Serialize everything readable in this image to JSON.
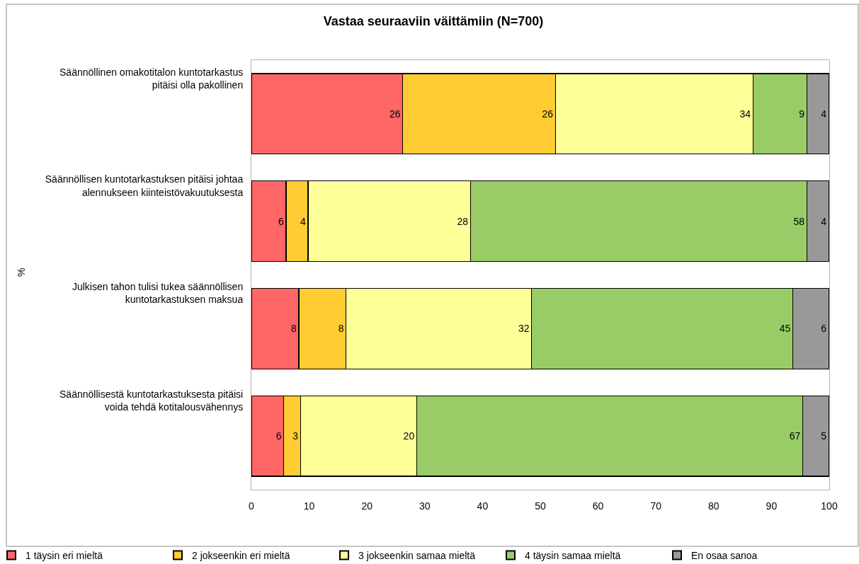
{
  "chart_data": {
    "type": "bar",
    "orientation": "horizontal",
    "stacked": true,
    "title": "Vastaa seuraaviin väittämiin (N=700)",
    "ylabel": "%",
    "categories": [
      "Säännöllinen omakotitalon kuntotarkastus pitäisi olla pakollinen",
      "Säännöllisen kuntotarkastuksen pitäisi johtaa alennukseen kiinteistövakuutuksesta",
      "Julkisen tahon tulisi tukea säännöllisen kuntotarkastuksen maksua",
      "Säännöllisestä kuntotarkastuksesta pitäisi voida tehdä kotitalousvähennys"
    ],
    "series": [
      {
        "name": "1 täysin eri mieltä",
        "color": "#ff6666",
        "values": [
          26.2,
          6.0,
          8.2,
          5.6
        ],
        "value_labels": [
          "26",
          "6",
          "8",
          "6"
        ]
      },
      {
        "name": "2 jokseenkin eri mieltä",
        "color": "#ffcc33",
        "values": [
          26.4,
          3.8,
          8.2,
          2.9
        ],
        "value_labels": [
          "26",
          "4",
          "8",
          "3"
        ]
      },
      {
        "name": "3 jokseenkin samaa mieltä",
        "color": "#ffff99",
        "values": [
          34.2,
          28.1,
          32.1,
          20.1
        ],
        "value_labels": [
          "34",
          "28",
          "32",
          "20"
        ]
      },
      {
        "name": "4 täysin samaa mieltä",
        "color": "#99cc66",
        "values": [
          9.3,
          58.2,
          45.2,
          66.8
        ],
        "value_labels": [
          "9",
          "58",
          "45",
          "67"
        ]
      },
      {
        "name": "En osaa sanoa",
        "color": "#999999",
        "values": [
          3.8,
          3.8,
          6.2,
          4.5
        ],
        "value_labels": [
          "4",
          "4",
          "6",
          "5"
        ]
      }
    ],
    "xlim": [
      0,
      100
    ],
    "xticks": [
      0,
      10,
      20,
      30,
      40,
      50,
      60,
      70,
      80,
      90,
      100
    ],
    "grid": false,
    "legend": "bottom"
  }
}
